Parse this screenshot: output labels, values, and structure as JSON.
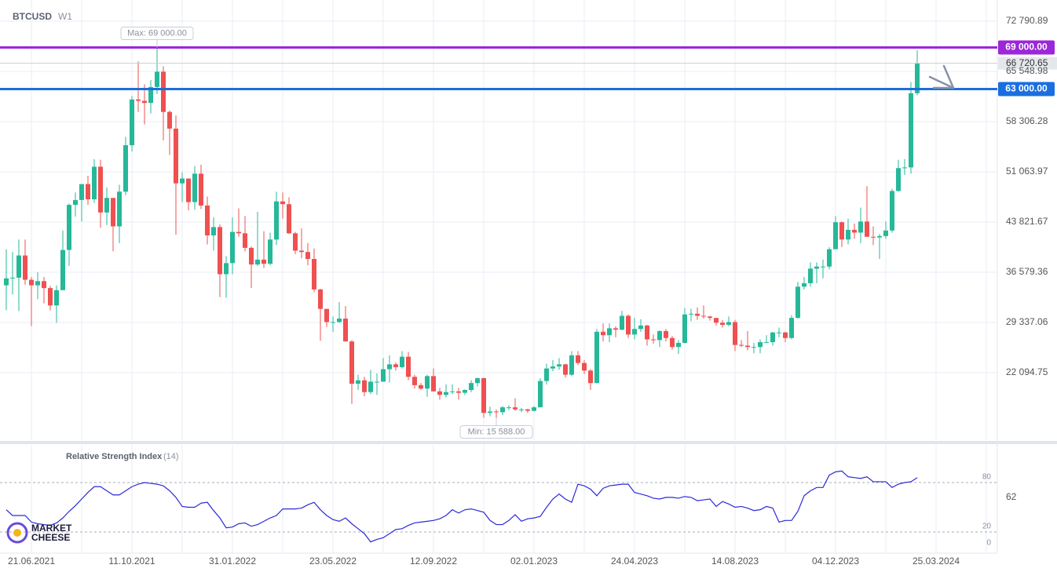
{
  "chart_data": {
    "type": "candlestick",
    "symbol": "BTCUSD",
    "timeframe": "W1",
    "up_color": "#26b899",
    "down_color": "#ef5050",
    "ylim": [
      12476,
      75280
    ],
    "yticks": [
      {
        "value": 72790.89,
        "label": "72 790.89"
      },
      {
        "value": 65548.98,
        "label": "65 548.98"
      },
      {
        "value": 58306.28,
        "label": "58 306.28"
      },
      {
        "value": 51063.97,
        "label": "51 063.97"
      },
      {
        "value": 43821.67,
        "label": "43 821.67"
      },
      {
        "value": 36579.36,
        "label": "36 579.36"
      },
      {
        "value": 29337.06,
        "label": "29 337.06"
      },
      {
        "value": 22094.75,
        "label": "22 094.75"
      }
    ],
    "xtick_labels": [
      "21.06.2021",
      "11.10.2021",
      "31.01.2022",
      "23.05.2022",
      "12.09.2022",
      "02.01.2023",
      "24.04.2023",
      "14.08.2023",
      "04.12.2023",
      "25.03.2024"
    ],
    "grid": true,
    "levels": [
      {
        "value": 69000,
        "label": "69 000.00",
        "color": "#9b27d8"
      },
      {
        "value": 63000,
        "label": "63 000.00",
        "color": "#1a6fe0"
      }
    ],
    "last_price": {
      "value": 66720.65,
      "label": "66 720.65"
    },
    "max_label": {
      "value": 69000,
      "label": "Max: 69 000.00"
    },
    "min_label": {
      "value": 15588,
      "label": "Min: 15 588.00"
    },
    "candles": [
      [
        34700,
        39900,
        31100,
        35700
      ],
      [
        35700,
        39500,
        33400,
        35800
      ],
      [
        35800,
        41300,
        31000,
        39000
      ],
      [
        39000,
        41300,
        34800,
        35500
      ],
      [
        35500,
        35900,
        28800,
        34700
      ],
      [
        34700,
        36600,
        32700,
        35300
      ],
      [
        35300,
        35900,
        32100,
        34300
      ],
      [
        34300,
        34600,
        31100,
        31800
      ],
      [
        31800,
        34700,
        29300,
        34000
      ],
      [
        34000,
        42600,
        34000,
        39800
      ],
      [
        39800,
        46500,
        37500,
        46300
      ],
      [
        46300,
        48100,
        44600,
        47000
      ],
      [
        47000,
        49300,
        43900,
        49300
      ],
      [
        49300,
        50500,
        46300,
        47100
      ],
      [
        47100,
        52900,
        46600,
        51800
      ],
      [
        51800,
        52800,
        43000,
        45200
      ],
      [
        45200,
        48800,
        43400,
        47300
      ],
      [
        47300,
        47300,
        39600,
        43200
      ],
      [
        43200,
        49200,
        40800,
        48200
      ],
      [
        48200,
        56100,
        47700,
        54900
      ],
      [
        54900,
        62000,
        54000,
        61500
      ],
      [
        61500,
        67000,
        59700,
        61300
      ],
      [
        61300,
        63700,
        57900,
        61000
      ],
      [
        61000,
        64300,
        59500,
        63300
      ],
      [
        63300,
        69000,
        62300,
        65500
      ],
      [
        65500,
        66300,
        55600,
        59700
      ],
      [
        59700,
        59900,
        53500,
        57300
      ],
      [
        57300,
        59200,
        42000,
        49400
      ],
      [
        49400,
        51000,
        46700,
        50100
      ],
      [
        50100,
        50100,
        45500,
        46700
      ],
      [
        46700,
        51900,
        45600,
        50800
      ],
      [
        50800,
        52100,
        45700,
        46200
      ],
      [
        46200,
        47500,
        40600,
        41900
      ],
      [
        41900,
        44500,
        39700,
        43100
      ],
      [
        43100,
        43500,
        33000,
        36300
      ],
      [
        36300,
        38900,
        32900,
        37900
      ],
      [
        37900,
        44500,
        36300,
        42400
      ],
      [
        42400,
        45800,
        41700,
        42200
      ],
      [
        42200,
        44700,
        39600,
        40100
      ],
      [
        40100,
        40300,
        34300,
        37700
      ],
      [
        37700,
        45300,
        37500,
        38400
      ],
      [
        38400,
        42500,
        37200,
        37800
      ],
      [
        37800,
        42300,
        37600,
        41300
      ],
      [
        41300,
        48200,
        40500,
        46800
      ],
      [
        46800,
        48100,
        44300,
        46400
      ],
      [
        46400,
        47400,
        42100,
        42200
      ],
      [
        42200,
        42400,
        39200,
        39700
      ],
      [
        39700,
        42900,
        38600,
        39500
      ],
      [
        39500,
        40800,
        37600,
        38500
      ],
      [
        38500,
        40000,
        33700,
        34100
      ],
      [
        34100,
        34200,
        26700,
        31300
      ],
      [
        31300,
        31300,
        28700,
        29400
      ],
      [
        29400,
        30200,
        28000,
        29400
      ],
      [
        29400,
        32300,
        29300,
        29900
      ],
      [
        29900,
        31700,
        26600,
        26600
      ],
      [
        26600,
        26800,
        17600,
        20500
      ],
      [
        20500,
        21800,
        19600,
        21000
      ],
      [
        21000,
        21500,
        18700,
        19300
      ],
      [
        19300,
        22500,
        19000,
        20800
      ],
      [
        20800,
        22000,
        18900,
        20800
      ],
      [
        20800,
        24200,
        20800,
        22600
      ],
      [
        22600,
        24600,
        20700,
        23300
      ],
      [
        23300,
        23600,
        22400,
        22900
      ],
      [
        22900,
        25200,
        22700,
        24400
      ],
      [
        24400,
        25100,
        21000,
        21500
      ],
      [
        21500,
        21800,
        19800,
        20300
      ],
      [
        20300,
        20600,
        19600,
        19800
      ],
      [
        19800,
        21800,
        18600,
        21600
      ],
      [
        21600,
        22700,
        19400,
        19400
      ],
      [
        19400,
        19900,
        18200,
        18900
      ],
      [
        18900,
        20400,
        18500,
        19300
      ],
      [
        19300,
        20400,
        19000,
        19400
      ],
      [
        19400,
        19900,
        18200,
        19200
      ],
      [
        19200,
        19700,
        18900,
        19600
      ],
      [
        19600,
        21000,
        19300,
        20600
      ],
      [
        20600,
        21400,
        20100,
        21300
      ],
      [
        21300,
        21400,
        15600,
        16300
      ],
      [
        16300,
        17200,
        15800,
        16500
      ],
      [
        16500,
        16800,
        15588,
        16400
      ],
      [
        16400,
        17300,
        16000,
        17100
      ],
      [
        17100,
        17400,
        16700,
        17100
      ],
      [
        17100,
        18400,
        16600,
        16800
      ],
      [
        16800,
        17000,
        16400,
        16800
      ],
      [
        16800,
        16900,
        16300,
        16600
      ],
      [
        16600,
        17300,
        16500,
        17100
      ],
      [
        17100,
        21300,
        17100,
        20900
      ],
      [
        20900,
        23400,
        20400,
        22700
      ],
      [
        22700,
        23900,
        22300,
        23000
      ],
      [
        23000,
        24200,
        22500,
        23300
      ],
      [
        23300,
        23400,
        21400,
        21800
      ],
      [
        21800,
        25200,
        21600,
        24600
      ],
      [
        24600,
        25200,
        23200,
        23500
      ],
      [
        23500,
        23900,
        21900,
        22400
      ],
      [
        22400,
        22600,
        19600,
        20600
      ],
      [
        20600,
        28400,
        20600,
        28000
      ],
      [
        28000,
        29200,
        26600,
        27500
      ],
      [
        27500,
        29200,
        26500,
        28500
      ],
      [
        28500,
        28800,
        27200,
        28300
      ],
      [
        28300,
        31000,
        28200,
        30300
      ],
      [
        30300,
        30500,
        27100,
        27600
      ],
      [
        27600,
        30000,
        26900,
        28400
      ],
      [
        28400,
        29800,
        28000,
        28900
      ],
      [
        28900,
        29000,
        26000,
        26900
      ],
      [
        26900,
        27600,
        26300,
        26800
      ],
      [
        26800,
        28200,
        25800,
        28100
      ],
      [
        28100,
        28400,
        26600,
        27100
      ],
      [
        27100,
        27400,
        25400,
        25800
      ],
      [
        25800,
        26800,
        24800,
        26400
      ],
      [
        26400,
        31400,
        26300,
        30500
      ],
      [
        30500,
        31300,
        29500,
        30600
      ],
      [
        30600,
        31500,
        29700,
        30300
      ],
      [
        30300,
        31800,
        29900,
        30200
      ],
      [
        30200,
        30300,
        29600,
        30000
      ],
      [
        30000,
        30000,
        28900,
        29300
      ],
      [
        29300,
        29700,
        28600,
        29000
      ],
      [
        29000,
        30200,
        28800,
        29400
      ],
      [
        29400,
        29700,
        25200,
        26100
      ],
      [
        26100,
        26800,
        25800,
        26000
      ],
      [
        26000,
        28100,
        25300,
        25800
      ],
      [
        25800,
        26400,
        24900,
        25800
      ],
      [
        25800,
        26900,
        24900,
        26500
      ],
      [
        26500,
        27500,
        26400,
        26500
      ],
      [
        26500,
        28000,
        26000,
        27900
      ],
      [
        27900,
        28600,
        27200,
        27900
      ],
      [
        27900,
        28000,
        26500,
        27100
      ],
      [
        27100,
        30400,
        26900,
        30000
      ],
      [
        30000,
        35200,
        29900,
        34500
      ],
      [
        34500,
        35900,
        34100,
        35000
      ],
      [
        35000,
        38000,
        34500,
        37100
      ],
      [
        37100,
        38000,
        35000,
        37400
      ],
      [
        37400,
        38400,
        35700,
        37400
      ],
      [
        37400,
        40200,
        37000,
        39900
      ],
      [
        39900,
        44700,
        39900,
        43800
      ],
      [
        43800,
        43900,
        40200,
        41300
      ],
      [
        41300,
        44300,
        40600,
        42700
      ],
      [
        42700,
        43600,
        41400,
        42300
      ],
      [
        42300,
        45900,
        40800,
        43900
      ],
      [
        43900,
        49000,
        41700,
        41700
      ],
      [
        41700,
        43200,
        40500,
        41600
      ],
      [
        41600,
        42100,
        38500,
        41800
      ],
      [
        41800,
        43900,
        41400,
        42600
      ],
      [
        42600,
        48600,
        42300,
        48300
      ],
      [
        48300,
        52800,
        48200,
        51600
      ],
      [
        51600,
        52900,
        50600,
        51700
      ],
      [
        51700,
        64000,
        50800,
        62400
      ],
      [
        62400,
        68600,
        62100,
        66720.65
      ]
    ],
    "rsi": {
      "name": "Relative Strength Index",
      "period_label": "(14)",
      "color": "#2a2ad8",
      "ylim": [
        0,
        100
      ],
      "yticks": [
        80,
        62,
        20,
        0
      ],
      "levels": [
        80,
        20
      ],
      "values": [
        47,
        40,
        40,
        40,
        32,
        30,
        29,
        28,
        31,
        37,
        45,
        52,
        60,
        68,
        75,
        75,
        70,
        65,
        65,
        70,
        75,
        78,
        80,
        79,
        78,
        76,
        70,
        62,
        51,
        50,
        50,
        55,
        56,
        46,
        37,
        25,
        26,
        30,
        31,
        27,
        29,
        33,
        37,
        40,
        48,
        48,
        48,
        49,
        53,
        56,
        47,
        40,
        35,
        33,
        37,
        30,
        24,
        18,
        8,
        11,
        13,
        18,
        23,
        24,
        28,
        31,
        32,
        33,
        34,
        36,
        40,
        47,
        43,
        47,
        48,
        46,
        44,
        34,
        29,
        29,
        34,
        41,
        33,
        36,
        37,
        39,
        50,
        60,
        66,
        60,
        56,
        78,
        76,
        72,
        64,
        73,
        76,
        77,
        78,
        78,
        68,
        66,
        64,
        61,
        60,
        62,
        62,
        61,
        63,
        62,
        58,
        59,
        60,
        51,
        57,
        54,
        50,
        51,
        49,
        46,
        47,
        51,
        49,
        32,
        34,
        34,
        45,
        64,
        70,
        74,
        74,
        89,
        93,
        94,
        87,
        86,
        85,
        87,
        81,
        81,
        81,
        74,
        78,
        80,
        81,
        86
      ]
    },
    "logo": [
      "MARKET",
      "CHEESE"
    ]
  }
}
